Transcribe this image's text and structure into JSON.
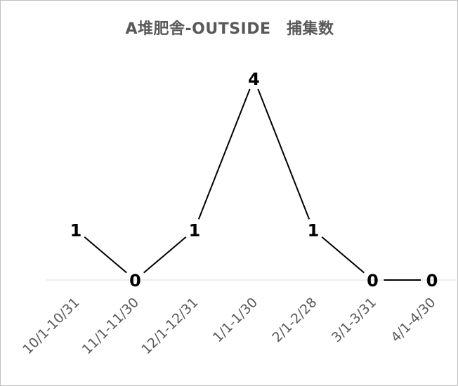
{
  "chart_data": {
    "type": "line",
    "title": "A堆肥舎-OUTSIDE　捕集数",
    "categories": [
      "10/1-10/31",
      "11/1-11/30",
      "12/1-12/31",
      "1/1-1/30",
      "2/1-2/28",
      "3/1-3/31",
      "4/1-4/30"
    ],
    "values": [
      1,
      0,
      1,
      4,
      1,
      0,
      0
    ],
    "ylim": [
      0,
      4
    ],
    "xlabel": "",
    "ylabel": "",
    "grid": false,
    "legend": "none",
    "line_color": "#000000",
    "axis_color": "#d9d9d9",
    "title_color": "#595959",
    "tick_color": "#595959"
  }
}
